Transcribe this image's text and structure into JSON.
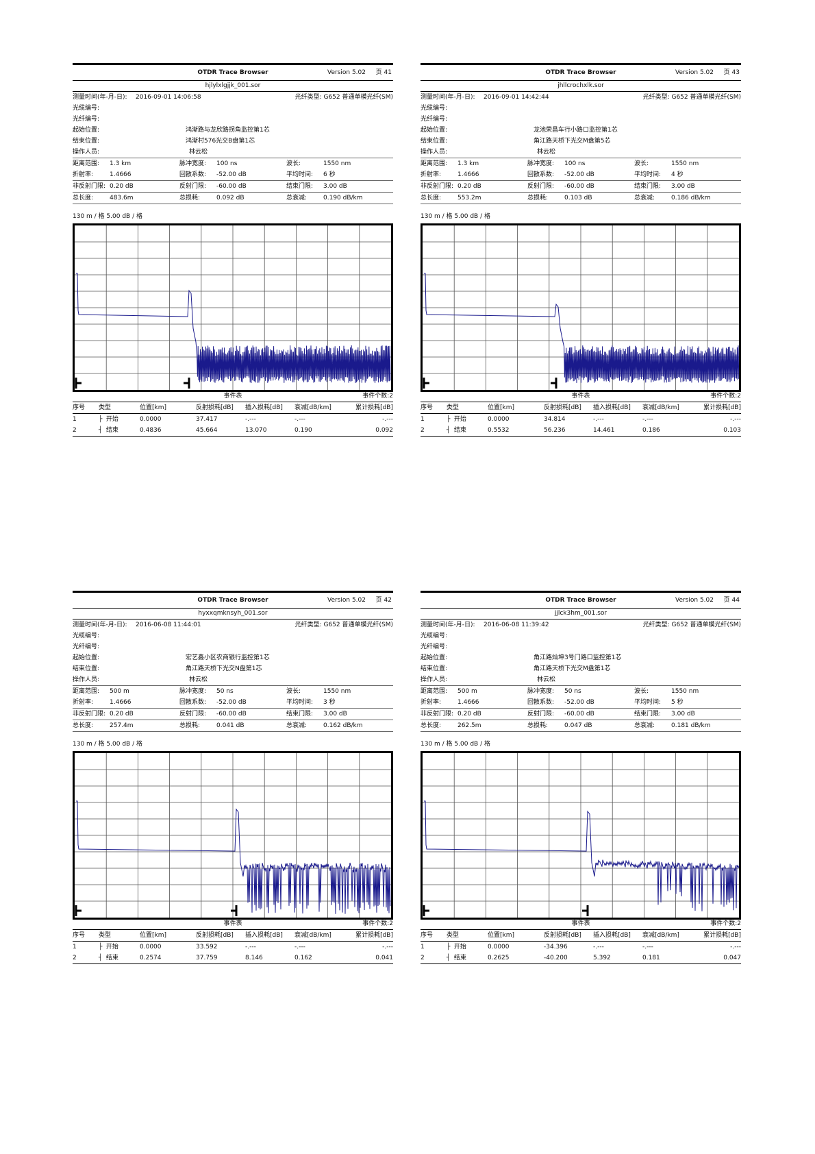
{
  "header_title": "OTDR Trace Browser",
  "header_version": "Version 5.02",
  "labels": {
    "time": "测量时间(年-月-日):",
    "fiber_type": "光纤类型: G652 普通单模光纤(SM)",
    "cable_no": "光缆编号:",
    "fiber_no": "光纤编号:",
    "start_loc": "起始位置:",
    "end_loc": "结束位置:",
    "operator": "操作人员:",
    "range": "距离范围:",
    "pulse": "脉冲宽度:",
    "wavelength": "波长:",
    "ior": "折射率:",
    "backscatter": "回散系数:",
    "avg_time": "平均时间:",
    "nonrefl": "非反射门限:",
    "refl": "反射门限:",
    "end_thr": "结束门限:",
    "total_len": "总长度:",
    "total_loss": "总损耗:",
    "total_atten": "总衰减:",
    "event_table": "事件表",
    "event_count": "事件个数:2",
    "cols": [
      "序号",
      "类型",
      "位置[km]",
      "反射损耗[dB]",
      "插入损耗[dB]",
      "衰减[dB/km]",
      "累计损耗[dB]"
    ],
    "ev_start": "开始",
    "ev_end": "结束"
  },
  "reports": [
    {
      "page": "页 41",
      "file": "hjlylxlgjjk_001.sor",
      "time": "2016-09-01  14:06:58",
      "start_loc": "鸿渐路与龙欣路拐角监控第1芯",
      "end_loc": "鸿渐村576光交B盘第1芯",
      "operator": "林云松",
      "range": "1.3 km",
      "pulse": "100 ns",
      "wavelength": "1550 nm",
      "ior": "1.4666",
      "backscatter": "-52.00 dB",
      "avg_time": "6 秒",
      "nonrefl": "0.20 dB",
      "refl": "-60.00 dB",
      "end_thr": "3.00 dB",
      "total_len": "483.6m",
      "total_loss": "0.092 dB",
      "total_atten": "0.190 dB/km",
      "scale": "130 m / 格    5.00 dB / 格",
      "events": [
        {
          "no": "1",
          "pos": "0.0000",
          "refl": "37.417",
          "ins": "-.---",
          "att": "-.---",
          "cum": "-.---"
        },
        {
          "no": "2",
          "pos": "0.4836",
          "refl": "45.664",
          "ins": "13.070",
          "att": "0.190",
          "cum": "0.092"
        }
      ]
    },
    {
      "page": "页 43",
      "file": "jhllcrochxlk.sor",
      "time": "2016-09-01  14:42:44",
      "start_loc": "龙池荣昌车行小路口监控第1芯",
      "end_loc": "角江路天桥下光交M盘第5芯",
      "operator": "林云松",
      "range": "1.3 km",
      "pulse": "100 ns",
      "wavelength": "1550 nm",
      "ior": "1.4666",
      "backscatter": "-52.00 dB",
      "avg_time": "4 秒",
      "nonrefl": "0.20 dB",
      "refl": "-60.00 dB",
      "end_thr": "3.00 dB",
      "total_len": "553.2m",
      "total_loss": "0.103 dB",
      "total_atten": "0.186 dB/km",
      "scale": "130 m / 格    5.00 dB / 格",
      "events": [
        {
          "no": "1",
          "pos": "0.0000",
          "refl": "34.814",
          "ins": "-.---",
          "att": "-.---",
          "cum": "-.---"
        },
        {
          "no": "2",
          "pos": "0.5532",
          "refl": "56.236",
          "ins": "14.461",
          "att": "0.186",
          "cum": "0.103"
        }
      ]
    },
    {
      "page": "页 42",
      "file": "hyxxqmknsyh_001.sor",
      "time": "2016-06-08  11:44:01",
      "start_loc": "宏艺鑫小区农商银行监控第1芯",
      "end_loc": "角江路天桥下光交N盘第1芯",
      "operator": "林云松",
      "range": "500 m",
      "pulse": "50 ns",
      "wavelength": "1550 nm",
      "ior": "1.4666",
      "backscatter": "-52.00 dB",
      "avg_time": "3 秒",
      "nonrefl": "0.20 dB",
      "refl": "-60.00 dB",
      "end_thr": "3.00 dB",
      "total_len": "257.4m",
      "total_loss": "0.041 dB",
      "total_atten": "0.162 dB/km",
      "scale": "130 m / 格    5.00 dB / 格",
      "events": [
        {
          "no": "1",
          "pos": "0.0000",
          "refl": "33.592",
          "ins": "-.---",
          "att": "-.---",
          "cum": "-.---"
        },
        {
          "no": "2",
          "pos": "0.2574",
          "refl": "37.759",
          "ins": "8.146",
          "att": "0.162",
          "cum": "0.041"
        }
      ]
    },
    {
      "page": "页 44",
      "file": "jjlck3hm_001.sor",
      "time": "2016-06-08  11:39:42",
      "start_loc": "角江路灿坤3号门路口监控第1芯",
      "end_loc": "角江路天桥下光交M盘第1芯",
      "operator": "林云松",
      "range": "500 m",
      "pulse": "50 ns",
      "wavelength": "1550 nm",
      "ior": "1.4666",
      "backscatter": "-52.00 dB",
      "avg_time": "5 秒",
      "nonrefl": "0.20 dB",
      "refl": "-60.00 dB",
      "end_thr": "3.00 dB",
      "total_len": "262.5m",
      "total_loss": "0.047 dB",
      "total_atten": "0.181 dB/km",
      "scale": "130 m / 格    5.00 dB / 格",
      "events": [
        {
          "no": "1",
          "pos": "0.0000",
          "refl": "-34.396",
          "ins": "-.---",
          "att": "-.---",
          "cum": "-.---"
        },
        {
          "no": "2",
          "pos": "0.2625",
          "refl": "-40.200",
          "ins": "5.392",
          "att": "0.181",
          "cum": "0.047"
        }
      ]
    }
  ]
}
